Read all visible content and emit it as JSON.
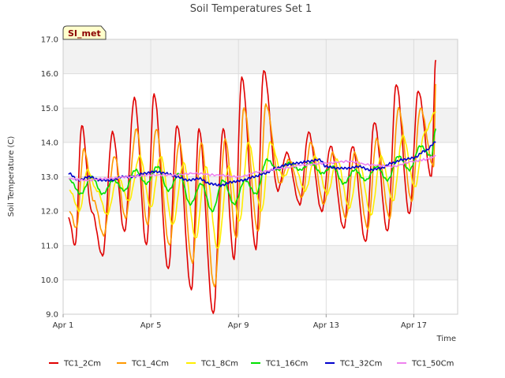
{
  "chart_data": {
    "type": "line",
    "title": "Soil Temperatures Set 1",
    "xlabel": "Time",
    "ylabel": "Soil Temperature (C)",
    "badge": "SI_met",
    "x_tick_labels": [
      "Apr 1",
      "Apr 5",
      "Apr 9",
      "Apr 13",
      "Apr 17"
    ],
    "x_tick_days": [
      1,
      5,
      9,
      13,
      17
    ],
    "xlim": [
      1,
      19.0
    ],
    "ylim": [
      9.0,
      17.0
    ],
    "y_ticks": [
      9.0,
      10.0,
      11.0,
      12.0,
      13.0,
      14.0,
      15.0,
      16.0,
      17.0
    ],
    "y_tick_labels": [
      "9.0",
      "10.0",
      "11.0",
      "12.0",
      "13.0",
      "14.0",
      "15.0",
      "16.0",
      "17.0"
    ],
    "grid": true,
    "legend_position": "bottom",
    "series": [
      {
        "name": "TC1_2Cm",
        "color": "#e00000",
        "x": [
          1.25,
          1.55,
          1.85,
          2.3,
          2.8,
          3.25,
          3.8,
          4.25,
          4.8,
          5.15,
          5.8,
          6.2,
          6.85,
          7.2,
          7.85,
          8.3,
          8.8,
          9.15,
          9.8,
          10.15,
          10.8,
          11.2,
          11.8,
          12.2,
          12.8,
          13.2,
          13.8,
          14.2,
          14.8,
          15.2,
          15.8,
          16.2,
          16.8,
          17.2,
          17.8,
          18.0
        ],
        "y": [
          11.8,
          11.0,
          14.5,
          12.0,
          10.7,
          14.3,
          11.4,
          15.3,
          11.0,
          15.4,
          10.3,
          14.5,
          9.7,
          14.4,
          9.0,
          14.4,
          10.6,
          15.9,
          10.9,
          16.1,
          12.6,
          13.7,
          12.2,
          14.3,
          12.0,
          13.9,
          11.5,
          13.9,
          11.1,
          14.6,
          11.4,
          15.7,
          11.9,
          15.5,
          13.0,
          16.4
        ]
      },
      {
        "name": "TC1_4Cm",
        "color": "#ff9900",
        "x": [
          1.3,
          1.6,
          1.95,
          2.4,
          2.85,
          3.35,
          3.85,
          4.35,
          4.85,
          5.25,
          5.85,
          6.3,
          6.9,
          7.3,
          7.9,
          8.4,
          8.9,
          9.25,
          9.9,
          10.25,
          10.9,
          11.3,
          11.9,
          12.3,
          12.9,
          13.3,
          13.9,
          14.3,
          14.9,
          15.3,
          15.9,
          16.3,
          16.9,
          17.3,
          17.9,
          18.0
        ],
        "y": [
          12.0,
          11.5,
          13.8,
          12.3,
          11.3,
          13.6,
          11.8,
          14.4,
          11.6,
          14.4,
          11.0,
          14.0,
          10.5,
          14.0,
          9.8,
          14.1,
          11.2,
          15.0,
          11.4,
          15.1,
          12.8,
          13.5,
          12.4,
          14.0,
          12.2,
          13.7,
          11.8,
          13.7,
          11.5,
          14.1,
          11.8,
          15.0,
          12.3,
          15.0,
          13.3,
          15.7
        ]
      },
      {
        "name": "TC1_8Cm",
        "color": "#ffee00",
        "x": [
          1.3,
          1.75,
          2.1,
          2.55,
          3.0,
          3.5,
          4.0,
          4.5,
          5.0,
          5.45,
          6.0,
          6.5,
          7.05,
          7.5,
          8.05,
          8.55,
          9.05,
          9.45,
          10.05,
          10.45,
          11.05,
          11.5,
          12.05,
          12.5,
          13.05,
          13.5,
          14.05,
          14.5,
          15.05,
          15.5,
          16.05,
          16.5,
          17.05,
          17.5,
          18.0
        ],
        "y": [
          12.6,
          12.0,
          13.2,
          12.6,
          11.9,
          13.0,
          12.3,
          13.6,
          12.1,
          13.6,
          11.6,
          13.4,
          11.2,
          13.3,
          10.9,
          13.3,
          11.7,
          14.0,
          12.0,
          14.0,
          13.0,
          13.4,
          12.6,
          13.6,
          12.5,
          13.5,
          12.1,
          13.4,
          11.9,
          13.6,
          12.3,
          14.2,
          12.7,
          14.3,
          14.9
        ]
      },
      {
        "name": "TC1_16Cm",
        "color": "#00e000",
        "x": [
          1.3,
          1.8,
          2.3,
          2.8,
          3.3,
          3.8,
          4.3,
          4.8,
          5.3,
          5.8,
          6.3,
          6.8,
          7.3,
          7.8,
          8.3,
          8.8,
          9.3,
          9.8,
          10.3,
          10.8,
          11.3,
          11.8,
          12.3,
          12.8,
          13.3,
          13.8,
          14.3,
          14.8,
          15.3,
          15.8,
          16.3,
          16.8,
          17.3,
          17.8,
          18.0
        ],
        "y": [
          12.9,
          12.5,
          13.0,
          12.5,
          12.9,
          12.6,
          13.2,
          12.8,
          13.3,
          12.6,
          13.1,
          12.2,
          12.8,
          12.0,
          12.9,
          12.2,
          12.9,
          12.5,
          13.5,
          13.2,
          13.4,
          13.2,
          13.4,
          13.1,
          13.3,
          12.8,
          13.2,
          12.9,
          13.3,
          12.9,
          13.6,
          13.2,
          13.9,
          13.6,
          14.4
        ]
      },
      {
        "name": "TC1_32Cm",
        "color": "#0000cc",
        "x": [
          1.25,
          1.7,
          2.2,
          2.7,
          3.2,
          3.7,
          4.2,
          4.7,
          5.2,
          5.7,
          6.2,
          6.7,
          7.2,
          7.7,
          8.2,
          8.7,
          9.2,
          9.7,
          10.2,
          10.7,
          11.2,
          11.7,
          12.2,
          12.7,
          13.0,
          13.5,
          14.0,
          14.5,
          15.0,
          15.5,
          16.0,
          16.5,
          17.0,
          17.5,
          18.0
        ],
        "y": [
          13.1,
          12.9,
          13.0,
          12.9,
          12.9,
          13.0,
          13.0,
          13.1,
          13.15,
          13.1,
          13.0,
          12.9,
          12.95,
          12.8,
          12.75,
          12.85,
          12.9,
          13.0,
          13.1,
          13.25,
          13.35,
          13.4,
          13.45,
          13.5,
          13.3,
          13.25,
          13.25,
          13.3,
          13.2,
          13.25,
          13.4,
          13.5,
          13.55,
          13.75,
          14.0
        ]
      },
      {
        "name": "TC1_50Cm",
        "color": "#ee82ee",
        "x": [
          1.25,
          2.0,
          3.0,
          4.0,
          5.0,
          6.0,
          7.0,
          8.0,
          9.0,
          10.0,
          11.0,
          12.0,
          13.0,
          14.0,
          15.0,
          16.0,
          17.0,
          17.5,
          18.0
        ],
        "y": [
          12.95,
          12.9,
          12.95,
          13.0,
          13.05,
          13.05,
          13.1,
          13.05,
          13.0,
          13.15,
          13.25,
          13.35,
          13.4,
          13.45,
          13.35,
          13.3,
          13.45,
          13.5,
          13.6
        ]
      }
    ]
  }
}
